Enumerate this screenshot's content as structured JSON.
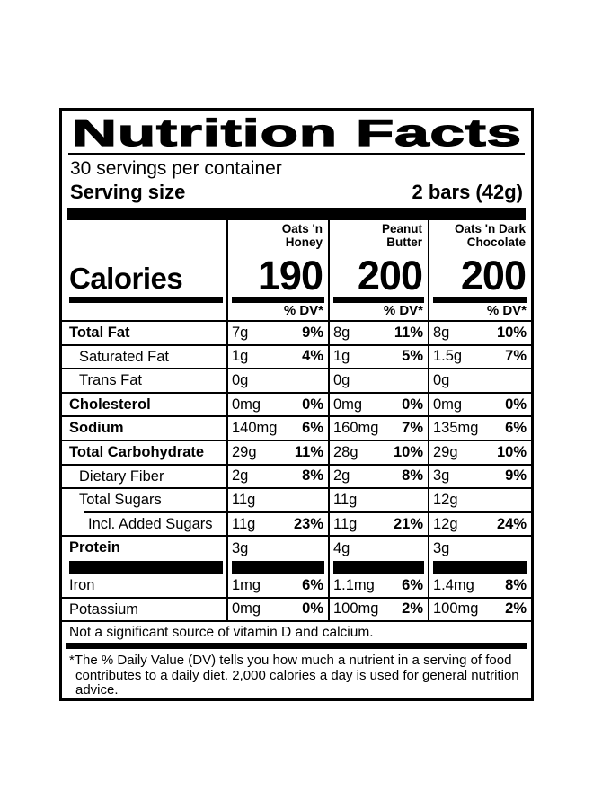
{
  "label": {
    "title": "Nutrition Facts",
    "servings_per_container": "30 servings per container",
    "serving_size_label": "Serving size",
    "serving_size_value": "2 bars (42g)",
    "calories_label": "Calories",
    "dv_header": "% DV*",
    "columns": [
      {
        "name": "Oats 'n Honey",
        "name_lines": [
          "Oats 'n",
          "Honey"
        ],
        "calories": "190"
      },
      {
        "name": "Peanut Butter",
        "name_lines": [
          "Peanut",
          "Butter"
        ],
        "calories": "200"
      },
      {
        "name": "Oats 'n Dark Chocolate",
        "name_lines": [
          "Oats 'n Dark",
          "Chocolate"
        ],
        "calories": "200"
      }
    ],
    "rows": [
      {
        "name": "Total Fat",
        "style": "bold",
        "values": [
          {
            "amount": "7g",
            "dv": "9%"
          },
          {
            "amount": "8g",
            "dv": "11%"
          },
          {
            "amount": "8g",
            "dv": "10%"
          }
        ]
      },
      {
        "name": "Saturated Fat",
        "style": "indent",
        "values": [
          {
            "amount": "1g",
            "dv": "4%"
          },
          {
            "amount": "1g",
            "dv": "5%"
          },
          {
            "amount": "1.5g",
            "dv": "7%"
          }
        ]
      },
      {
        "name": "Trans Fat",
        "style": "indent",
        "values": [
          {
            "amount": "0g",
            "dv": ""
          },
          {
            "amount": "0g",
            "dv": ""
          },
          {
            "amount": "0g",
            "dv": ""
          }
        ]
      },
      {
        "name": "Cholesterol",
        "style": "bold",
        "values": [
          {
            "amount": "0mg",
            "dv": "0%"
          },
          {
            "amount": "0mg",
            "dv": "0%"
          },
          {
            "amount": "0mg",
            "dv": "0%"
          }
        ]
      },
      {
        "name": "Sodium",
        "style": "bold",
        "values": [
          {
            "amount": "140mg",
            "dv": "6%"
          },
          {
            "amount": "160mg",
            "dv": "7%"
          },
          {
            "amount": "135mg",
            "dv": "6%"
          }
        ]
      },
      {
        "name": "Total Carbohydrate",
        "style": "bold",
        "values": [
          {
            "amount": "29g",
            "dv": "11%"
          },
          {
            "amount": "28g",
            "dv": "10%"
          },
          {
            "amount": "29g",
            "dv": "10%"
          }
        ]
      },
      {
        "name": "Dietary Fiber",
        "style": "indent",
        "values": [
          {
            "amount": "2g",
            "dv": "8%"
          },
          {
            "amount": "2g",
            "dv": "8%"
          },
          {
            "amount": "3g",
            "dv": "9%"
          }
        ]
      },
      {
        "name": "Total Sugars",
        "style": "indent",
        "separator_inset": true,
        "values": [
          {
            "amount": "11g",
            "dv": ""
          },
          {
            "amount": "11g",
            "dv": ""
          },
          {
            "amount": "12g",
            "dv": ""
          }
        ]
      },
      {
        "name": "Incl. Added Sugars",
        "style": "indent2",
        "values": [
          {
            "amount": "11g",
            "dv": "23%"
          },
          {
            "amount": "11g",
            "dv": "21%"
          },
          {
            "amount": "12g",
            "dv": "24%"
          }
        ]
      },
      {
        "name": "Protein",
        "style": "bold",
        "last": true,
        "values": [
          {
            "amount": "3g",
            "dv": ""
          },
          {
            "amount": "4g",
            "dv": ""
          },
          {
            "amount": "3g",
            "dv": ""
          }
        ]
      }
    ],
    "mineral_rows": [
      {
        "name": "Iron",
        "style": "regular",
        "values": [
          {
            "amount": "1mg",
            "dv": "6%"
          },
          {
            "amount": "1.1mg",
            "dv": "6%"
          },
          {
            "amount": "1.4mg",
            "dv": "8%"
          }
        ]
      },
      {
        "name": "Potassium",
        "style": "regular",
        "values": [
          {
            "amount": "0mg",
            "dv": "0%"
          },
          {
            "amount": "100mg",
            "dv": "2%"
          },
          {
            "amount": "100mg",
            "dv": "2%"
          }
        ]
      }
    ],
    "not_significant_note": "Not a significant source of vitamin D and calcium.",
    "footnote": "*The % Daily Value (DV) tells you how much a nutrient in a serving of food contributes to a daily diet. 2,000 calories a day is used for general nutrition advice.",
    "colors": {
      "ink": "#000000",
      "paper": "#ffffff"
    }
  }
}
